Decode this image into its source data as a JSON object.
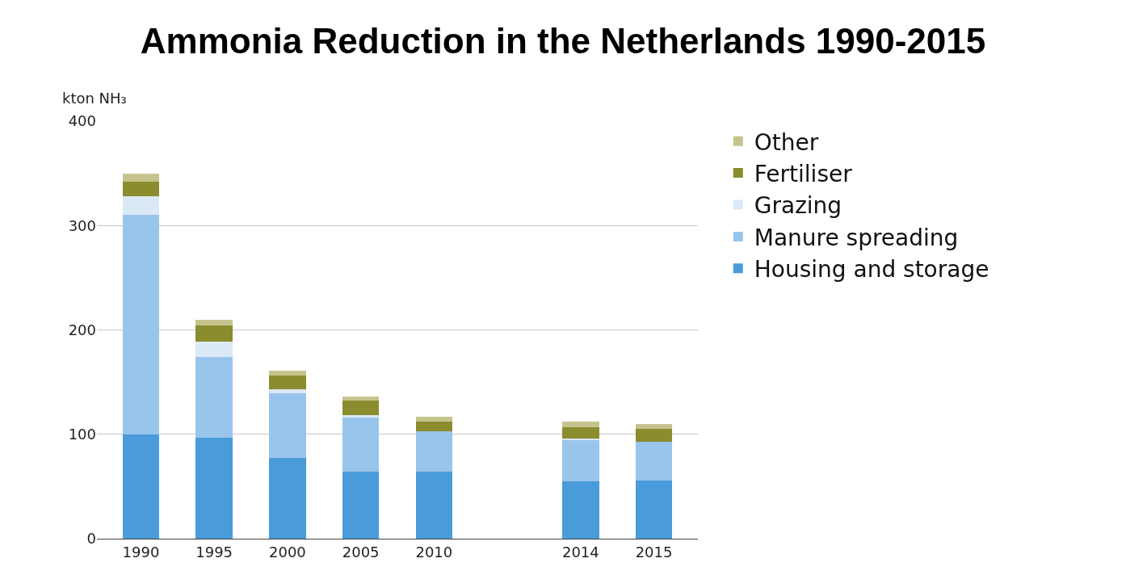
{
  "chart_data": {
    "type": "bar",
    "title": "Ammonia Reduction in the Netherlands 1990-2015",
    "ylabel": "kton NH₃",
    "categories": [
      "1990",
      "1995",
      "2000",
      "2005",
      "2010",
      null,
      "2014",
      "2015"
    ],
    "stacked": true,
    "series": [
      {
        "name": "Housing and storage",
        "color": "#4a9bd9",
        "values": [
          100,
          97,
          77,
          64,
          64,
          null,
          55,
          56
        ]
      },
      {
        "name": "Manure spreading",
        "color": "#99c4ec",
        "values": [
          210,
          77,
          62,
          52,
          39,
          null,
          40,
          37
        ]
      },
      {
        "name": "Grazing",
        "color": "#dbe9f7",
        "values": [
          18,
          15,
          4,
          2,
          null,
          null,
          1,
          null
        ]
      },
      {
        "name": "Fertiliser",
        "color": "#8a8c2e",
        "values": [
          14,
          15,
          13,
          14,
          9,
          null,
          11,
          12
        ]
      },
      {
        "name": "Other",
        "color": "#c5c48e",
        "values": [
          8,
          6,
          5,
          4,
          5,
          null,
          5,
          5
        ]
      }
    ],
    "ylim": [
      0,
      400
    ],
    "yticks": [
      0,
      100,
      200,
      300,
      400
    ],
    "grid": "y",
    "legend": "top right"
  }
}
